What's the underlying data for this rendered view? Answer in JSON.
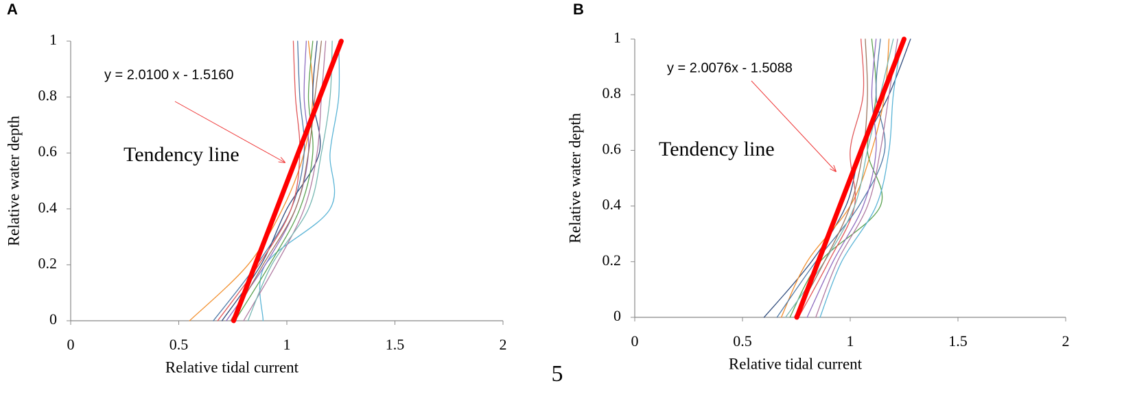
{
  "page_number": "5",
  "chart_data": [
    {
      "type": "line",
      "panel_label": "A",
      "x_label": "Relative tidal current",
      "y_label": "Relative water depth",
      "equation": "y = 2.0100 x - 1.5160",
      "annotation": "Tendency line",
      "xlim": [
        0,
        2
      ],
      "xticks": [
        0,
        0.5,
        1,
        1.5,
        2
      ],
      "ylim": [
        0,
        1
      ],
      "yticks": [
        0,
        0.2,
        0.4,
        0.6,
        0.8,
        1
      ],
      "series": [
        {
          "color": "#f28e2b",
          "x": [
            0.55,
            0.82,
            0.98,
            1.08,
            1.12,
            1.1
          ],
          "y": [
            0,
            0.2,
            0.4,
            0.6,
            0.8,
            1
          ]
        },
        {
          "color": "#5ab4d6",
          "x": [
            0.89,
            0.9,
            1.2,
            1.2,
            1.24,
            1.24
          ],
          "y": [
            0,
            0.2,
            0.4,
            0.6,
            0.8,
            1
          ]
        },
        {
          "color": "#4e79a7",
          "x": [
            0.66,
            0.86,
            1.02,
            1.08,
            1.06,
            1.05
          ],
          "y": [
            0,
            0.2,
            0.4,
            0.6,
            0.8,
            1
          ]
        },
        {
          "color": "#2f4b7c",
          "x": [
            0.7,
            0.88,
            1.0,
            1.15,
            1.12,
            1.14
          ],
          "y": [
            0,
            0.2,
            0.4,
            0.6,
            0.8,
            1
          ]
        },
        {
          "color": "#8e6bbf",
          "x": [
            0.72,
            0.9,
            1.04,
            1.1,
            1.08,
            1.09
          ],
          "y": [
            0,
            0.2,
            0.4,
            0.6,
            0.8,
            1
          ]
        },
        {
          "color": "#59a14f",
          "x": [
            0.76,
            0.92,
            1.06,
            1.12,
            1.1,
            1.12
          ],
          "y": [
            0,
            0.2,
            0.4,
            0.6,
            0.8,
            1
          ]
        },
        {
          "color": "#e15759",
          "x": [
            0.68,
            0.87,
            1.02,
            1.06,
            1.04,
            1.03
          ],
          "y": [
            0,
            0.2,
            0.4,
            0.6,
            0.8,
            1
          ]
        },
        {
          "color": "#b07aa1",
          "x": [
            0.8,
            0.95,
            1.08,
            1.14,
            1.16,
            1.18
          ],
          "y": [
            0,
            0.2,
            0.4,
            0.6,
            0.8,
            1
          ]
        },
        {
          "color": "#9c755f",
          "x": [
            0.74,
            0.89,
            1.04,
            1.1,
            1.13,
            1.16
          ],
          "y": [
            0,
            0.2,
            0.4,
            0.6,
            0.8,
            1
          ]
        },
        {
          "color": "#76b7b2",
          "x": [
            0.82,
            0.93,
            1.1,
            1.16,
            1.2,
            1.21
          ],
          "y": [
            0,
            0.2,
            0.4,
            0.6,
            0.8,
            1
          ]
        },
        {
          "color": "#ff0000",
          "width": 7,
          "x": [
            0.754,
            1.252
          ],
          "y": [
            0,
            1
          ]
        }
      ]
    },
    {
      "type": "line",
      "panel_label": "B",
      "x_label": "Relative tidal current",
      "y_label": "Relative water depth",
      "equation": "y = 2.0076x - 1.5088",
      "annotation": "Tendency line",
      "xlim": [
        0,
        2
      ],
      "xticks": [
        0,
        0.5,
        1,
        1.5,
        2
      ],
      "ylim": [
        0,
        1
      ],
      "yticks": [
        0,
        0.2,
        0.4,
        0.6,
        0.8,
        1
      ],
      "series": [
        {
          "color": "#2f4b7c",
          "x": [
            0.6,
            0.82,
            0.98,
            1.05,
            1.18,
            1.28
          ],
          "y": [
            0,
            0.2,
            0.4,
            0.6,
            0.8,
            1
          ]
        },
        {
          "color": "#f28e2b",
          "x": [
            0.68,
            0.8,
            1.0,
            1.1,
            1.16,
            1.18
          ],
          "y": [
            0,
            0.2,
            0.4,
            0.6,
            0.8,
            1
          ]
        },
        {
          "color": "#59a14f",
          "x": [
            0.72,
            0.86,
            1.14,
            1.08,
            1.12,
            1.1
          ],
          "y": [
            0,
            0.2,
            0.4,
            0.6,
            0.8,
            1
          ]
        },
        {
          "color": "#e15759",
          "x": [
            0.76,
            0.9,
            1.02,
            1.0,
            1.06,
            1.05
          ],
          "y": [
            0,
            0.2,
            0.4,
            0.6,
            0.8,
            1
          ]
        },
        {
          "color": "#4e79a7",
          "x": [
            0.66,
            0.84,
            1.04,
            1.16,
            1.12,
            1.14
          ],
          "y": [
            0,
            0.2,
            0.4,
            0.6,
            0.8,
            1
          ]
        },
        {
          "color": "#8e6bbf",
          "x": [
            0.8,
            0.92,
            1.06,
            1.12,
            1.1,
            1.12
          ],
          "y": [
            0,
            0.2,
            0.4,
            0.6,
            0.8,
            1
          ]
        },
        {
          "color": "#76b7b2",
          "x": [
            0.7,
            0.88,
            1.02,
            1.08,
            1.14,
            1.2
          ],
          "y": [
            0,
            0.2,
            0.4,
            0.6,
            0.8,
            1
          ]
        },
        {
          "color": "#b07aa1",
          "x": [
            0.84,
            0.94,
            1.08,
            1.14,
            1.18,
            1.22
          ],
          "y": [
            0,
            0.2,
            0.4,
            0.6,
            0.8,
            1
          ]
        },
        {
          "color": "#9c755f",
          "x": [
            0.74,
            0.88,
            1.0,
            1.06,
            1.08,
            1.07
          ],
          "y": [
            0,
            0.2,
            0.4,
            0.6,
            0.8,
            1
          ]
        },
        {
          "color": "#5ab4d6",
          "x": [
            0.86,
            0.96,
            1.12,
            1.18,
            1.2,
            1.24
          ],
          "y": [
            0,
            0.2,
            0.4,
            0.6,
            0.8,
            1
          ]
        },
        {
          "color": "#ff0000",
          "width": 7,
          "x": [
            0.752,
            1.25
          ],
          "y": [
            0,
            1
          ]
        }
      ]
    }
  ]
}
